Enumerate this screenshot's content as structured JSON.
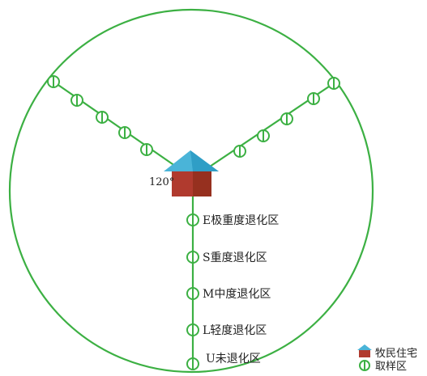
{
  "diagram": {
    "angle_label": "120°",
    "zones": [
      {
        "label": "E极重度退化区"
      },
      {
        "label": "S重度退化区"
      },
      {
        "label": "M中度退化区"
      },
      {
        "label": "L轻度退化区"
      },
      {
        "label": "U未退化区"
      }
    ],
    "legend": {
      "house_label": "牧民住宅",
      "sample_label": "取样区"
    },
    "colors": {
      "line": "#3cb043",
      "roof": "#4ab4d8",
      "house": "#b03a2e"
    }
  }
}
